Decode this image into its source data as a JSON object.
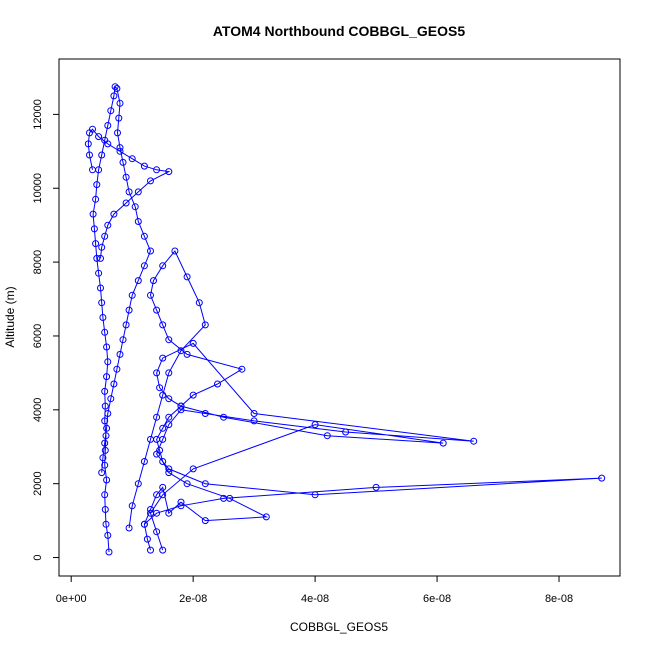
{
  "chart_data": {
    "type": "line",
    "title": "ATOM4 Northbound COBBGL_GEOS5",
    "xlabel": "COBBGL_GEOS5",
    "ylabel": "Altitude (m)",
    "xlim": [
      -2e-09,
      9e-08
    ],
    "ylim": [
      -500,
      13500
    ],
    "x_ticks": [
      0,
      2e-08,
      4e-08,
      6e-08,
      8e-08
    ],
    "x_tick_labels": [
      "0e+00",
      "2e-08",
      "4e-08",
      "6e-08",
      "8e-08"
    ],
    "y_ticks": [
      0,
      2000,
      4000,
      6000,
      8000,
      10000,
      12000
    ],
    "y_tick_labels": [
      "0",
      "2000",
      "4000",
      "6000",
      "8000",
      "10000",
      "12000"
    ],
    "grid": false,
    "series": [
      {
        "color": "#0000ff",
        "marker": "open-circle",
        "x": [
          6.2e-09,
          6e-09,
          5.7e-09,
          5.6e-09,
          5.5e-09,
          5.8e-09,
          5.5e-09,
          5.6e-09,
          5.7e-09,
          5.5e-09,
          5.6e-09,
          5.5e-09,
          5.8e-09,
          6e-09,
          5.8e-09,
          5.5e-09,
          5.2e-09,
          5e-09,
          4.8e-09,
          4.5e-09,
          4.2e-09,
          4e-09,
          3.8e-09,
          3.6e-09,
          4e-09,
          4.2e-09,
          4.5e-09,
          5e-09,
          5.5e-09,
          6e-09,
          6.5e-09,
          7e-09,
          7.2e-09,
          7.5e-09,
          8e-09,
          7.8e-09,
          7.6e-09,
          8e-09,
          8.5e-09,
          9e-09,
          9.5e-09,
          1.05e-08,
          1.1e-08,
          1.2e-08,
          1.3e-08,
          1.2e-08,
          1.1e-08,
          1e-08,
          9.5e-09,
          9e-09,
          8.5e-09,
          8e-09,
          7.5e-09,
          7e-09,
          6.5e-09,
          6e-09,
          5.8e-09,
          5.5e-09,
          5.2e-09,
          5e-09
        ],
        "y": [
          150,
          600,
          900,
          1300,
          1700,
          2100,
          2500,
          2900,
          3300,
          3700,
          4100,
          4500,
          4900,
          5300,
          5700,
          6100,
          6500,
          6900,
          7300,
          7700,
          8100,
          8500,
          8900,
          9300,
          9700,
          10100,
          10500,
          10900,
          11300,
          11700,
          12100,
          12500,
          12750,
          12700,
          12300,
          11900,
          11500,
          11100,
          10700,
          10300,
          9900,
          9500,
          9100,
          8700,
          8300,
          7900,
          7500,
          7100,
          6700,
          6300,
          5900,
          5500,
          5100,
          4700,
          4300,
          3900,
          3500,
          3100,
          2700,
          2300
        ]
      },
      {
        "color": "#0000ff",
        "marker": "open-circle",
        "x": [
          1.3e-08,
          1.25e-08,
          1.2e-08,
          1.3e-08,
          1.4e-08,
          1.5e-08,
          1.6e-08,
          1.8e-08,
          2.2e-08,
          3.2e-08,
          2.6e-08,
          1.9e-08,
          1.6e-08,
          1.5e-08,
          1.45e-08,
          1.4e-08,
          1.5e-08,
          1.6e-08,
          1.8e-08,
          2e-08,
          2.4e-08,
          2.8e-08,
          1.9e-08,
          1.6e-08,
          1.5e-08,
          1.4e-08,
          1.3e-08,
          1.35e-08,
          1.5e-08,
          1.7e-08,
          1.9e-08,
          2.1e-08,
          2.2e-08,
          1.8e-08,
          1.6e-08,
          1.5e-08,
          1.4e-08,
          1.3e-08,
          1.2e-08,
          1.1e-08,
          1e-08,
          9.5e-09
        ],
        "y": [
          200,
          500,
          900,
          1300,
          1700,
          1900,
          1200,
          1500,
          1000,
          1100,
          1600,
          2000,
          2300,
          2600,
          2900,
          3200,
          3500,
          3800,
          4100,
          4400,
          4700,
          5100,
          5500,
          5900,
          6300,
          6700,
          7100,
          7500,
          7900,
          8300,
          7600,
          6900,
          6300,
          5600,
          5000,
          4400,
          3800,
          3200,
          2600,
          2000,
          1400,
          800
        ]
      },
      {
        "color": "#0000ff",
        "marker": "open-circle",
        "x": [
          1.5e-08,
          1.4e-08,
          1.3e-08,
          1.5e-08,
          2e-08,
          4e-08,
          6.1e-08,
          4.2e-08,
          2.5e-08,
          1.8e-08,
          1.6e-08,
          1.45e-08,
          1.4e-08,
          1.5e-08,
          2e-08,
          3e-08,
          6.6e-08,
          4.5e-08,
          3e-08,
          2.2e-08,
          1.8e-08,
          1.6e-08,
          1.5e-08,
          1.4e-08,
          1.6e-08,
          2.2e-08,
          4e-08,
          8.7e-08,
          5e-08,
          2.5e-08,
          1.8e-08,
          1.4e-08,
          1.2e-08
        ],
        "y": [
          200,
          700,
          1200,
          1700,
          2400,
          3600,
          3100,
          3300,
          3800,
          4100,
          4300,
          4600,
          5000,
          5400,
          5800,
          3900,
          3150,
          3400,
          3700,
          3900,
          4000,
          3600,
          3200,
          2800,
          2400,
          2000,
          1700,
          2150,
          1900,
          1600,
          1400,
          1200,
          900
        ]
      },
      {
        "color": "#0000ff",
        "marker": "open-circle",
        "x": [
          3.5e-09,
          3e-09,
          2.8e-09,
          3e-09,
          3.5e-09,
          4.5e-09,
          6e-09,
          8e-09,
          1e-08,
          1.2e-08,
          1.4e-08,
          1.6e-08,
          1.3e-08,
          1.1e-08,
          9e-09,
          7e-09,
          6e-09,
          5.5e-09,
          5e-09,
          4.8e-09
        ],
        "y": [
          10500,
          10900,
          11200,
          11500,
          11600,
          11400,
          11200,
          11000,
          10800,
          10600,
          10500,
          10450,
          10200,
          9900,
          9600,
          9300,
          9000,
          8700,
          8400,
          8100
        ]
      }
    ]
  }
}
